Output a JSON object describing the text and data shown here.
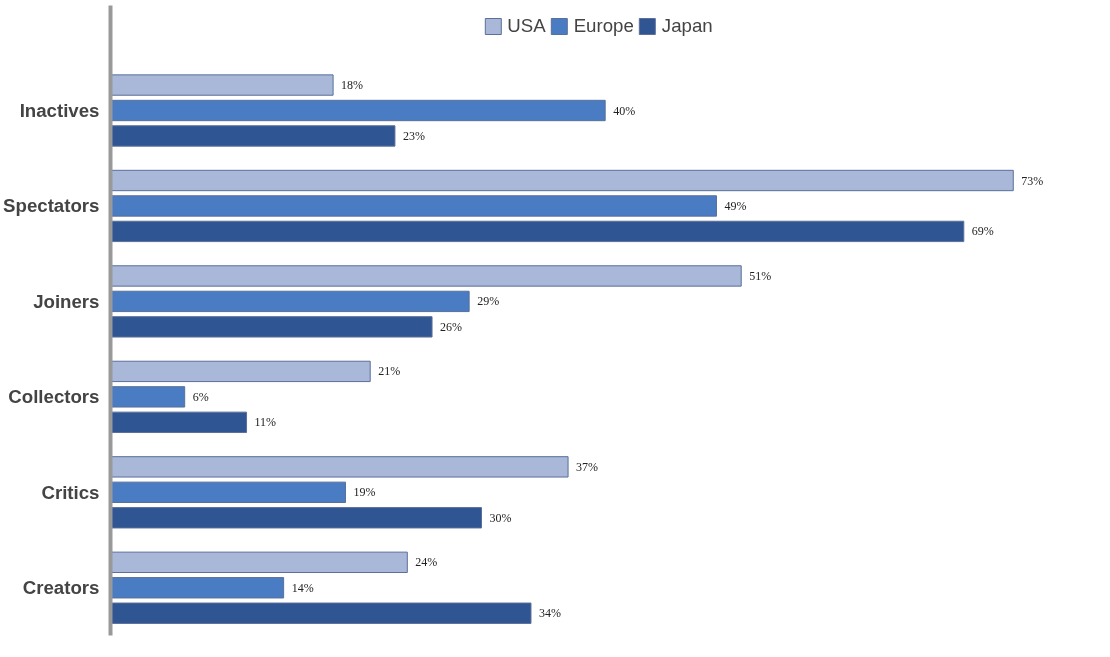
{
  "chart_data": {
    "type": "bar",
    "orientation": "horizontal",
    "categories": [
      "Inactives",
      "Spectators",
      "Joiners",
      "Collectors",
      "Critics",
      "Creators"
    ],
    "series": [
      {
        "name": "USA",
        "color": "#a9b7d9",
        "values": [
          18,
          73,
          51,
          21,
          37,
          24
        ],
        "value_labels": [
          "18%",
          "73%",
          "51%",
          "21%",
          "37%",
          "24%"
        ]
      },
      {
        "name": "Europe",
        "color": "#4a7cc4",
        "values": [
          40,
          49,
          29,
          6,
          19,
          14
        ],
        "value_labels": [
          "40%",
          "49%",
          "29%",
          "6%",
          "19%",
          "14%"
        ]
      },
      {
        "name": "Japan",
        "color": "#2f5592",
        "values": [
          23,
          69,
          26,
          11,
          30,
          34
        ],
        "value_labels": [
          "23%",
          "69%",
          "26%",
          "11%",
          "30%",
          "34%"
        ]
      }
    ],
    "legend": "top",
    "grid": false,
    "tick_labels": "y"
  }
}
